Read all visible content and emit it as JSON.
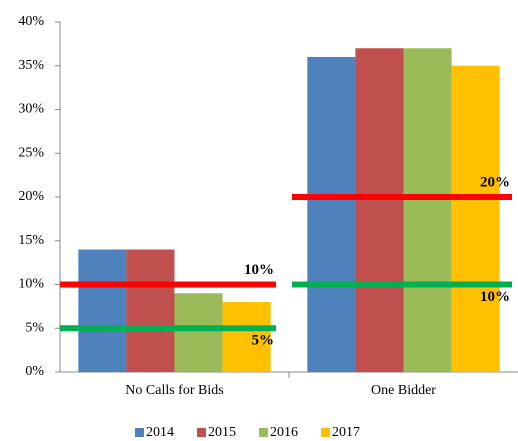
{
  "chart_data": {
    "type": "bar",
    "categories": [
      "No Calls for Bids",
      "One Bidder"
    ],
    "series": [
      {
        "name": "2014",
        "color": "#4f81bd",
        "values": [
          14,
          36
        ]
      },
      {
        "name": "2015",
        "color": "#c0504d",
        "values": [
          14,
          37
        ]
      },
      {
        "name": "2016",
        "color": "#9bbb59",
        "values": [
          9,
          37
        ]
      },
      {
        "name": "2017",
        "color": "#ffc000",
        "values": [
          8,
          35
        ]
      }
    ],
    "thresholds": [
      [
        {
          "value": 10,
          "label": "10%",
          "color": "#ff0000"
        },
        {
          "value": 5,
          "label": "5%",
          "color": "#00b050"
        }
      ],
      [
        {
          "value": 20,
          "label": "20%",
          "color": "#ff0000"
        },
        {
          "value": 10,
          "label": "10%",
          "color": "#00b050"
        }
      ]
    ],
    "ylim": [
      0,
      40
    ],
    "yticks": [
      {
        "value": 0,
        "label": "0%"
      },
      {
        "value": 5,
        "label": "5%"
      },
      {
        "value": 10,
        "label": "10%"
      },
      {
        "value": 15,
        "label": "15%"
      },
      {
        "value": 20,
        "label": "20%"
      },
      {
        "value": 25,
        "label": "25%"
      },
      {
        "value": 30,
        "label": "30%"
      },
      {
        "value": 35,
        "label": "35%"
      },
      {
        "value": 40,
        "label": "40%"
      }
    ],
    "legend": "bottom"
  }
}
